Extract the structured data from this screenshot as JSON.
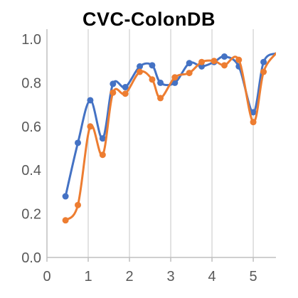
{
  "chart_data": {
    "type": "line",
    "title": "CVC-ColonDB",
    "xlabel": "",
    "ylabel": "",
    "xlim": [
      0,
      5.55
    ],
    "ylim": [
      0,
      1.0
    ],
    "x_ticks": [
      0,
      1,
      2,
      3,
      4,
      5
    ],
    "y_ticks": [
      0.0,
      0.2,
      0.4,
      0.6,
      0.8,
      1.0
    ],
    "y_tick_labels": [
      "0.0",
      "0.2",
      "0.4",
      "0.6",
      "0.8",
      "1.0"
    ],
    "grid": "vertical",
    "legend": "none",
    "series": [
      {
        "color": "#4472c4",
        "smooth": true,
        "points": [
          [
            0.45,
            0.28
          ],
          [
            0.75,
            0.525
          ],
          [
            1.05,
            0.72
          ],
          [
            1.35,
            0.545
          ],
          [
            1.6,
            0.795
          ],
          [
            1.9,
            0.78
          ],
          [
            2.25,
            0.875
          ],
          [
            2.55,
            0.88
          ],
          [
            2.75,
            0.8
          ],
          [
            3.1,
            0.8
          ],
          [
            3.45,
            0.89
          ],
          [
            3.75,
            0.875
          ],
          [
            4.05,
            0.895
          ],
          [
            4.3,
            0.92
          ],
          [
            4.65,
            0.875
          ],
          [
            5.0,
            0.665
          ],
          [
            5.25,
            0.895
          ],
          [
            5.55,
            0.935
          ]
        ],
        "markers": [
          true,
          true,
          true,
          true,
          true,
          true,
          true,
          true,
          true,
          true,
          true,
          true,
          true,
          true,
          true,
          true,
          true,
          false
        ]
      },
      {
        "color": "#ed7d31",
        "smooth": true,
        "points": [
          [
            0.45,
            0.17
          ],
          [
            0.75,
            0.24
          ],
          [
            1.05,
            0.6
          ],
          [
            1.35,
            0.47
          ],
          [
            1.6,
            0.755
          ],
          [
            1.9,
            0.75
          ],
          [
            2.25,
            0.85
          ],
          [
            2.55,
            0.815
          ],
          [
            2.75,
            0.73
          ],
          [
            3.1,
            0.825
          ],
          [
            3.45,
            0.845
          ],
          [
            3.75,
            0.895
          ],
          [
            4.05,
            0.9
          ],
          [
            4.3,
            0.88
          ],
          [
            4.65,
            0.905
          ],
          [
            5.0,
            0.62
          ],
          [
            5.25,
            0.85
          ],
          [
            5.55,
            0.935
          ]
        ],
        "markers": [
          true,
          true,
          true,
          true,
          true,
          true,
          true,
          true,
          true,
          true,
          true,
          true,
          true,
          true,
          true,
          true,
          true,
          false
        ]
      }
    ]
  }
}
